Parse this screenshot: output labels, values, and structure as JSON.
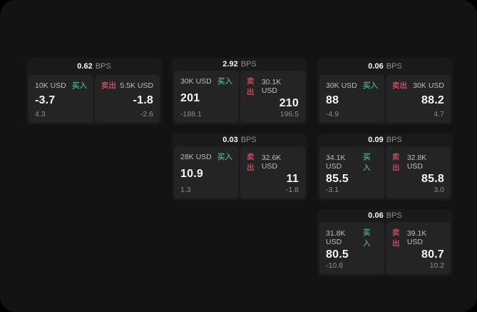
{
  "colors": {
    "page_bg": "#000000",
    "app_bg": "#131313",
    "card_bg": "#1a1a1a",
    "panel_bg": "#242424",
    "buy_green": "#45a36a",
    "sell_red": "#c4495e",
    "text_primary": "#f5f5f5",
    "text_secondary": "#bdbdbd",
    "text_muted": "#8e8e8e"
  },
  "labels": {
    "bps": "BPS",
    "buy": "买入",
    "sell": "卖出"
  },
  "cards": [
    {
      "row": 1,
      "col": 1,
      "bps": "0.62",
      "buy": {
        "amount": "10K USD",
        "price": "-3.7",
        "delta": "4.3"
      },
      "sell": {
        "amount": "5.5K USD",
        "price": "-1.8",
        "delta": "-2.6"
      }
    },
    {
      "row": 1,
      "col": 2,
      "bps": "2.92",
      "buy": {
        "amount": "30K USD",
        "price": "201",
        "delta": "-188.1"
      },
      "sell": {
        "amount": "30.1K USD",
        "price": "210",
        "delta": "196.5"
      }
    },
    {
      "row": 1,
      "col": 3,
      "bps": "0.06",
      "buy": {
        "amount": "30K USD",
        "price": "88",
        "delta": "-4.9"
      },
      "sell": {
        "amount": "30K USD",
        "price": "88.2",
        "delta": "4.7"
      }
    },
    {
      "row": 2,
      "col": 2,
      "bps": "0.03",
      "buy": {
        "amount": "28K USD",
        "price": "10.9",
        "delta": "1.3"
      },
      "sell": {
        "amount": "32.6K USD",
        "price": "11",
        "delta": "-1.8"
      }
    },
    {
      "row": 2,
      "col": 3,
      "bps": "0.09",
      "buy": {
        "amount": "34.1K USD",
        "price": "85.5",
        "delta": "-3.1"
      },
      "sell": {
        "amount": "32.8K USD",
        "price": "85.8",
        "delta": "3.0"
      }
    },
    {
      "row": 3,
      "col": 3,
      "bps": "0.06",
      "buy": {
        "amount": "31.8K USD",
        "price": "80.5",
        "delta": "-10.8"
      },
      "sell": {
        "amount": "39.1K USD",
        "price": "80.7",
        "delta": "10.2"
      }
    }
  ]
}
